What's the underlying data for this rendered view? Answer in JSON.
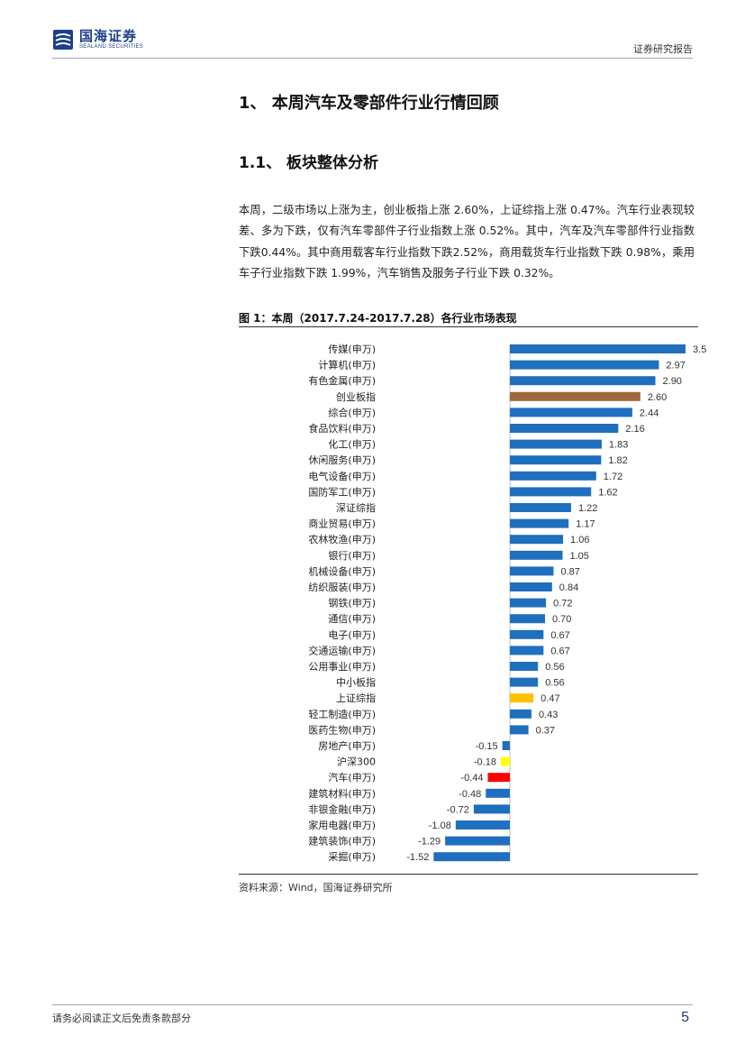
{
  "header": {
    "logo_cn": "国海证券",
    "logo_en": "SEALAND SECURITIES",
    "report_type": "证券研究报告"
  },
  "section": {
    "h1": "1、 本周汽车及零部件行业行情回顾",
    "h2": "1.1、 板块整体分析",
    "paragraph": "本周，二级市场以上涨为主，创业板指上涨 2.60%，上证综指上涨 0.47%。汽车行业表现较差、多为下跌，仅有汽车零部件子行业指数上涨 0.52%。其中，汽车及汽车零部件行业指数下跌0.44%。其中商用载客车行业指数下跌2.52%，商用载货车行业指数下跌 0.98%，乘用车子行业指数下跌 1.99%，汽车销售及服务子行业下跌 0.32%。"
  },
  "figure": {
    "title": "图 1：本周（2017.7.24-2017.7.28）各行业市场表现",
    "source": "资料来源：Wind，国海证券研究所"
  },
  "chart_data": {
    "type": "bar",
    "orientation": "horizontal",
    "categories": [
      "传媒(申万)",
      "计算机(申万)",
      "有色金属(申万)",
      "创业板指",
      "综合(申万)",
      "食品饮料(申万)",
      "化工(申万)",
      "休闲服务(申万)",
      "电气设备(申万)",
      "国防军工(申万)",
      "深证综指",
      "商业贸易(申万)",
      "农林牧渔(申万)",
      "银行(申万)",
      "机械设备(申万)",
      "纺织服装(申万)",
      "钢铁(申万)",
      "通信(申万)",
      "电子(申万)",
      "交通运输(申万)",
      "公用事业(申万)",
      "中小板指",
      "上证综指",
      "轻工制造(申万)",
      "医药生物(申万)",
      "房地产(申万)",
      "沪深300",
      "汽车(申万)",
      "建筑材料(申万)",
      "非银金融(申万)",
      "家用电器(申万)",
      "建筑装饰(申万)",
      "采掘(申万)"
    ],
    "values": [
      3.5,
      2.97,
      2.9,
      2.6,
      2.44,
      2.16,
      1.83,
      1.82,
      1.72,
      1.62,
      1.22,
      1.17,
      1.06,
      1.05,
      0.87,
      0.84,
      0.72,
      0.7,
      0.67,
      0.67,
      0.56,
      0.56,
      0.47,
      0.43,
      0.37,
      -0.15,
      -0.18,
      -0.44,
      -0.48,
      -0.72,
      -1.08,
      -1.29,
      -1.52
    ],
    "value_labels": [
      "3.5",
      "2.97",
      "2.90",
      "2.60",
      "2.44",
      "2.16",
      "1.83",
      "1.82",
      "1.72",
      "1.62",
      "1.22",
      "1.17",
      "1.06",
      "1.05",
      "0.87",
      "0.84",
      "0.72",
      "0.70",
      "0.67",
      "0.67",
      "0.56",
      "0.56",
      "0.47",
      "0.43",
      "0.37",
      "-0.15",
      "-0.18",
      "-0.44",
      "-0.48",
      "-0.72",
      "-1.08",
      "-1.29",
      "-1.52"
    ],
    "colors": [
      "#1f6fbf",
      "#1f6fbf",
      "#1f6fbf",
      "#a0683a",
      "#1f6fbf",
      "#1f6fbf",
      "#1f6fbf",
      "#1f6fbf",
      "#1f6fbf",
      "#1f6fbf",
      "#1f6fbf",
      "#1f6fbf",
      "#1f6fbf",
      "#1f6fbf",
      "#1f6fbf",
      "#1f6fbf",
      "#1f6fbf",
      "#1f6fbf",
      "#1f6fbf",
      "#1f6fbf",
      "#1f6fbf",
      "#1f6fbf",
      "#ffc000",
      "#1f6fbf",
      "#1f6fbf",
      "#1f6fbf",
      "#ffff00",
      "#ff0000",
      "#1f6fbf",
      "#1f6fbf",
      "#1f6fbf",
      "#1f6fbf",
      "#1f6fbf"
    ],
    "xlim": [
      -1.52,
      3.5
    ],
    "grid": false,
    "legend": "none"
  },
  "footer": {
    "disclaimer": "请务必阅读正文后免责条款部分",
    "page": "5"
  }
}
